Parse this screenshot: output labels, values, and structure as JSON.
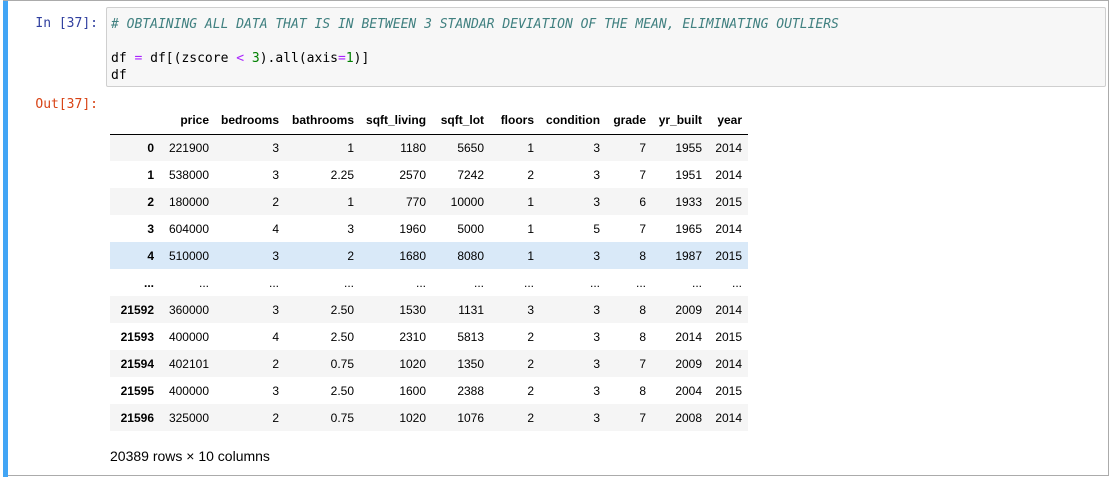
{
  "cell": {
    "in_prompt": "In [37]:",
    "out_prompt": "Out[37]:",
    "code_comment": "# OBTAINING ALL DATA THAT IS IN BETWEEN 3 STANDAR DEVIATION OF THE MEAN, ELIMINATING OUTLIERS",
    "code_line2_a": "df ",
    "code_line2_eq": "=",
    "code_line2_b": " df[(zscore ",
    "code_line2_lt": "<",
    "code_line2_c": " ",
    "code_line2_three": "3",
    "code_line2_d": ").all(axis",
    "code_line2_eq2": "=",
    "code_line2_one": "1",
    "code_line2_e": ")]",
    "code_line3": "df"
  },
  "table": {
    "columns": [
      "",
      "price",
      "bedrooms",
      "bathrooms",
      "sqft_living",
      "sqft_lot",
      "floors",
      "condition",
      "grade",
      "yr_built",
      "year"
    ],
    "rows": [
      [
        "0",
        "221900",
        "3",
        "1",
        "1180",
        "5650",
        "1",
        "3",
        "7",
        "1955",
        "2014"
      ],
      [
        "1",
        "538000",
        "3",
        "2.25",
        "2570",
        "7242",
        "2",
        "3",
        "7",
        "1951",
        "2014"
      ],
      [
        "2",
        "180000",
        "2",
        "1",
        "770",
        "10000",
        "1",
        "3",
        "6",
        "1933",
        "2015"
      ],
      [
        "3",
        "604000",
        "4",
        "3",
        "1960",
        "5000",
        "1",
        "5",
        "7",
        "1965",
        "2014"
      ],
      [
        "4",
        "510000",
        "3",
        "2",
        "1680",
        "8080",
        "1",
        "3",
        "8",
        "1987",
        "2015"
      ],
      [
        "...",
        "...",
        "...",
        "...",
        "...",
        "...",
        "...",
        "...",
        "...",
        "...",
        "..."
      ],
      [
        "21592",
        "360000",
        "3",
        "2.50",
        "1530",
        "1131",
        "3",
        "3",
        "8",
        "2009",
        "2014"
      ],
      [
        "21593",
        "400000",
        "4",
        "2.50",
        "2310",
        "5813",
        "2",
        "3",
        "8",
        "2014",
        "2015"
      ],
      [
        "21594",
        "402101",
        "2",
        "0.75",
        "1020",
        "1350",
        "2",
        "3",
        "7",
        "2009",
        "2014"
      ],
      [
        "21595",
        "400000",
        "3",
        "2.50",
        "1600",
        "2388",
        "2",
        "3",
        "8",
        "2004",
        "2015"
      ],
      [
        "21596",
        "325000",
        "2",
        "0.75",
        "1020",
        "1076",
        "2",
        "3",
        "7",
        "2008",
        "2014"
      ]
    ],
    "highlighted_row": 4
  },
  "summary": "20389 rows × 10 columns",
  "colors": {
    "accent_bar": "#42a5f5",
    "in_prompt": "#303f9f",
    "out_prompt": "#d84315",
    "comment": "#408080"
  }
}
